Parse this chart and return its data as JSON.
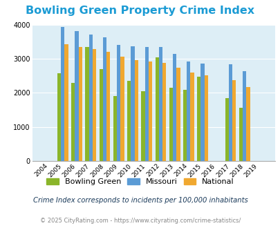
{
  "title": "Bowling Green Property Crime Index",
  "years": [
    2004,
    2005,
    2006,
    2007,
    2008,
    2009,
    2010,
    2011,
    2012,
    2013,
    2014,
    2015,
    2016,
    2017,
    2018,
    2019
  ],
  "bowling_green": [
    0,
    2580,
    2300,
    3350,
    2700,
    1900,
    2350,
    2060,
    3050,
    2160,
    2090,
    2470,
    0,
    1840,
    1570,
    0
  ],
  "missouri": [
    0,
    3940,
    3820,
    3720,
    3640,
    3420,
    3370,
    3360,
    3350,
    3150,
    2930,
    2870,
    0,
    2840,
    2650,
    0
  ],
  "national": [
    0,
    3440,
    3360,
    3300,
    3220,
    3060,
    2960,
    2920,
    2880,
    2740,
    2600,
    2510,
    0,
    2380,
    2180,
    0
  ],
  "bar_width": 0.26,
  "ylim": [
    0,
    4000
  ],
  "yticks": [
    0,
    1000,
    2000,
    3000,
    4000
  ],
  "color_bg_outer": "#ffffff",
  "color_bg_plot": "#ddeef6",
  "color_bowling_green": "#8ab52a",
  "color_missouri": "#5b9bd5",
  "color_national": "#f0a830",
  "legend_labels": [
    "Bowling Green",
    "Missouri",
    "National"
  ],
  "footnote1": "Crime Index corresponds to incidents per 100,000 inhabitants",
  "footnote2": "© 2025 CityRating.com - https://www.cityrating.com/crime-statistics/",
  "title_color": "#1b9bd4",
  "legend_text_color": "#222222",
  "footnote1_color": "#1a3a5a",
  "footnote2_color": "#888888",
  "grid_color": "#ffffff"
}
